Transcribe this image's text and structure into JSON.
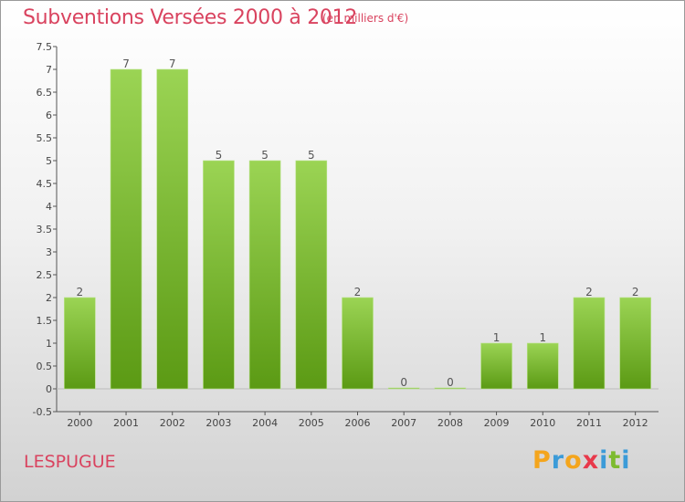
{
  "header": {
    "title": "Subventions Versées 2000 à 2012",
    "subtitle": "(en milliers d'€)"
  },
  "footer": {
    "commune": "LESPUGUE",
    "logo_letters": [
      "P",
      "r",
      "o",
      "x",
      "i",
      "t",
      "i"
    ],
    "logo_colors": [
      "#f4a51c",
      "#3b9bd8",
      "#f4a51c",
      "#e8394b",
      "#3b9bd8",
      "#7dbb2f",
      "#3b9bd8"
    ]
  },
  "colors": {
    "bar_light": "#9bd454",
    "bar_dark": "#5b9a14",
    "axis": "#555555"
  },
  "chart_data": {
    "type": "bar",
    "title": "Subventions Versées 2000 à 2012",
    "subtitle": "(en milliers d'€)",
    "categories": [
      "2000",
      "2001",
      "2002",
      "2003",
      "2004",
      "2005",
      "2006",
      "2007",
      "2008",
      "2009",
      "2010",
      "2011",
      "2012"
    ],
    "values": [
      2,
      7,
      7,
      5,
      5,
      5,
      2,
      0,
      0,
      1,
      1,
      2,
      2
    ],
    "value_labels": [
      "2",
      "7",
      "7",
      "5",
      "5",
      "5",
      "2",
      "0",
      "0",
      "1",
      "1",
      "2",
      "2"
    ],
    "ylim": [
      -0.5,
      7.5
    ],
    "yticks": [
      -0.5,
      0,
      0.5,
      1,
      1.5,
      2,
      2.5,
      3,
      3.5,
      4,
      4.5,
      5,
      5.5,
      6,
      6.5,
      7,
      7.5
    ],
    "ytick_labels": [
      "-0.5",
      "0",
      "0.5",
      "1",
      "1.5",
      "2",
      "2.5",
      "3",
      "3.5",
      "4",
      "4.5",
      "5",
      "5.5",
      "6",
      "6.5",
      "7",
      "7.5"
    ],
    "grid": false,
    "legend": "none"
  }
}
